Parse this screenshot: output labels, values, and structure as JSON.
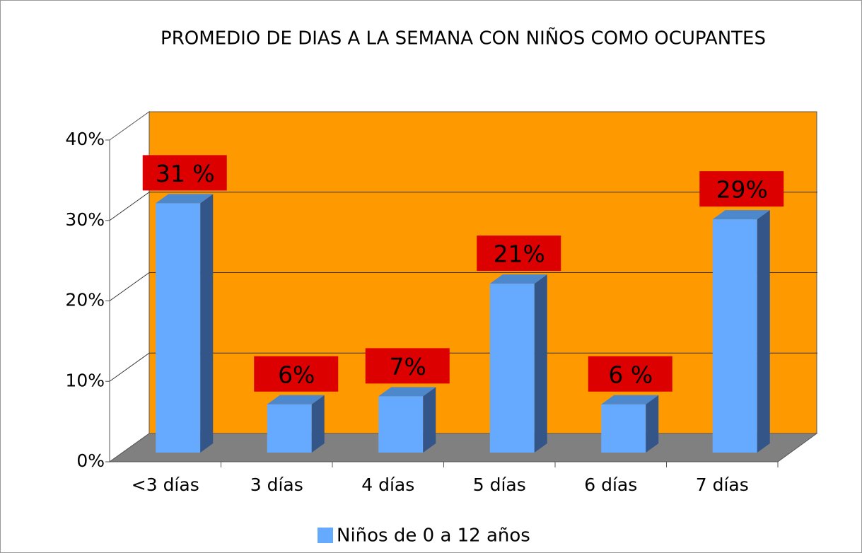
{
  "chart_data": {
    "type": "bar3d",
    "title": "PROMEDIO DE DIAS A LA SEMANA CON NIÑOS COMO OCUPANTES",
    "categories": [
      "<3 días",
      "3 días",
      "4 días",
      "5 días",
      "6 días",
      "7 días"
    ],
    "series": [
      {
        "name": "Niños de 0 a 12 años",
        "color": "#66aaff",
        "values": [
          31,
          6,
          7,
          21,
          6,
          29
        ],
        "value_labels": [
          "31 %",
          "6%",
          "7%",
          "21%",
          "6 %",
          "29%"
        ]
      }
    ],
    "ylim": [
      0,
      40
    ],
    "yticks": [
      {
        "value": 0,
        "label": "0%"
      },
      {
        "value": 10,
        "label": "10%"
      },
      {
        "value": 20,
        "label": "20%"
      },
      {
        "value": 30,
        "label": "30%"
      },
      {
        "value": 40,
        "label": "40%"
      }
    ],
    "grid": true,
    "legend": "bottom"
  }
}
